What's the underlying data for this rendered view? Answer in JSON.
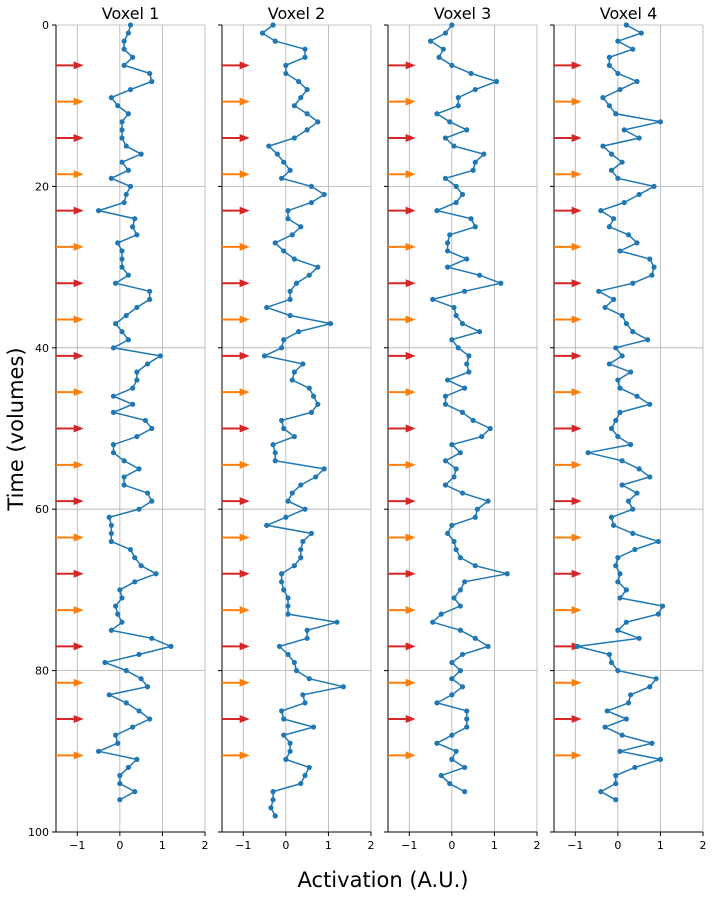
{
  "figure": {
    "xlabel": "Activation (A.U.)",
    "ylabel": "Time (volumes)"
  },
  "chart_data": {
    "type": "line",
    "orientation": "vertical-time",
    "grid": true,
    "x_range": [
      -1.5,
      2
    ],
    "y_range": [
      0,
      100
    ],
    "y_inverted": true,
    "x_ticks": [
      -1,
      0,
      1,
      2
    ],
    "y_ticks": [
      0,
      20,
      40,
      60,
      80,
      100
    ],
    "line_color": "#1f77b4",
    "stimulus_markers": [
      {
        "time": 5,
        "color": "#d62728"
      },
      {
        "time": 9.5,
        "color": "#ff7f0e"
      },
      {
        "time": 14,
        "color": "#d62728"
      },
      {
        "time": 18.5,
        "color": "#ff7f0e"
      },
      {
        "time": 23,
        "color": "#d62728"
      },
      {
        "time": 27.5,
        "color": "#ff7f0e"
      },
      {
        "time": 32,
        "color": "#d62728"
      },
      {
        "time": 36.5,
        "color": "#ff7f0e"
      },
      {
        "time": 41,
        "color": "#d62728"
      },
      {
        "time": 45.5,
        "color": "#ff7f0e"
      },
      {
        "time": 50,
        "color": "#d62728"
      },
      {
        "time": 54.5,
        "color": "#ff7f0e"
      },
      {
        "time": 59,
        "color": "#d62728"
      },
      {
        "time": 63.5,
        "color": "#ff7f0e"
      },
      {
        "time": 68,
        "color": "#d62728"
      },
      {
        "time": 72.5,
        "color": "#ff7f0e"
      },
      {
        "time": 77,
        "color": "#d62728"
      },
      {
        "time": 81.5,
        "color": "#ff7f0e"
      },
      {
        "time": 86,
        "color": "#d62728"
      },
      {
        "time": 90.5,
        "color": "#ff7f0e"
      }
    ],
    "panels": [
      {
        "title": "Voxel 1",
        "values": [
          0.25,
          0.2,
          0.1,
          0.1,
          0.3,
          0.1,
          0.7,
          0.75,
          0.25,
          -0.2,
          -0.05,
          0.2,
          0.05,
          0.05,
          0.05,
          0.15,
          0.5,
          0.05,
          0.2,
          -0.2,
          0.25,
          0.15,
          0.1,
          -0.5,
          0.35,
          0.3,
          0.4,
          -0.05,
          0.05,
          0.05,
          0.05,
          0.2,
          -0.1,
          0.7,
          0.7,
          0.4,
          0.15,
          -0.1,
          0.05,
          0.2,
          -0.15,
          0.95,
          0.65,
          0.4,
          0.4,
          0.3,
          -0.15,
          0.3,
          -0.15,
          0.6,
          0.75,
          0.4,
          -0.15,
          -0.15,
          0.1,
          0.45,
          0.1,
          0.1,
          0.65,
          0.75,
          0.45,
          -0.25,
          -0.2,
          -0.2,
          -0.2,
          0.25,
          0.35,
          0.5,
          0.85,
          0.35,
          0.0,
          0.05,
          -0.1,
          -0.05,
          0.05,
          -0.2,
          0.75,
          1.2,
          0.45,
          -0.35,
          0.15,
          0.5,
          0.65,
          -0.25,
          0.15,
          0.45,
          0.7,
          0.3,
          -0.1,
          -0.05,
          -0.5,
          0.4,
          0.2,
          0.0,
          0.0,
          0.35,
          0.0
        ]
      },
      {
        "title": "Voxel 2",
        "values": [
          -0.3,
          -0.55,
          -0.25,
          0.45,
          0.45,
          0.0,
          0.0,
          0.3,
          0.5,
          0.35,
          0.2,
          0.5,
          0.75,
          0.5,
          0.2,
          -0.4,
          -0.2,
          -0.05,
          0.1,
          -0.1,
          0.6,
          0.9,
          0.6,
          0.05,
          0.05,
          0.35,
          0.15,
          -0.25,
          -0.05,
          0.2,
          0.75,
          0.55,
          0.25,
          0.1,
          0.1,
          -0.45,
          0.1,
          1.05,
          0.3,
          -0.05,
          -0.1,
          -0.5,
          0.4,
          0.2,
          0.15,
          0.55,
          0.65,
          0.75,
          0.6,
          -0.1,
          -0.05,
          0.2,
          -0.3,
          -0.25,
          -0.25,
          0.9,
          0.7,
          0.35,
          0.15,
          0.05,
          0.45,
          0.0,
          -0.45,
          0.6,
          0.4,
          0.35,
          0.35,
          0.2,
          -0.1,
          -0.1,
          -0.05,
          0.05,
          0.05,
          0.05,
          1.2,
          0.5,
          0.5,
          -0.15,
          0.05,
          0.2,
          0.25,
          0.55,
          1.35,
          0.4,
          0.45,
          -0.1,
          -0.05,
          0.65,
          -0.05,
          0.1,
          0.1,
          0.0,
          0.55,
          0.45,
          0.35,
          -0.3,
          -0.3,
          -0.35,
          -0.25
        ]
      },
      {
        "title": "Voxel 3",
        "values": [
          0.0,
          -0.15,
          -0.5,
          -0.2,
          -0.3,
          0.0,
          0.45,
          1.05,
          0.55,
          0.15,
          0.15,
          -0.35,
          -0.05,
          0.35,
          -0.15,
          0.05,
          0.75,
          0.55,
          0.5,
          -0.15,
          0.1,
          0.25,
          0.1,
          -0.35,
          0.45,
          0.55,
          -0.05,
          -0.1,
          -0.1,
          0.35,
          -0.1,
          0.65,
          1.15,
          0.3,
          -0.45,
          0.05,
          0.1,
          0.25,
          0.65,
          0.0,
          0.15,
          0.4,
          0.35,
          0.4,
          -0.1,
          0.3,
          -0.15,
          -0.15,
          0.25,
          0.5,
          0.9,
          0.7,
          0.0,
          0.2,
          -0.15,
          0.1,
          0.05,
          -0.15,
          0.25,
          0.85,
          0.6,
          0.55,
          0.0,
          -0.1,
          0.05,
          0.1,
          0.2,
          0.55,
          1.3,
          0.3,
          0.2,
          0.05,
          0.2,
          -0.25,
          -0.45,
          0.2,
          0.55,
          0.85,
          0.25,
          0.0,
          0.2,
          0.0,
          0.25,
          0.0,
          -0.35,
          0.35,
          0.35,
          0.35,
          0.0,
          -0.35,
          0.1,
          0.0,
          0.3,
          -0.25,
          -0.05,
          0.3
        ]
      },
      {
        "title": "Voxel 4",
        "values": [
          0.2,
          0.55,
          0.0,
          0.35,
          -0.2,
          -0.2,
          0.0,
          0.45,
          0.05,
          -0.35,
          -0.2,
          -0.05,
          1.0,
          0.15,
          0.5,
          -0.35,
          -0.15,
          0.1,
          -0.15,
          0.0,
          0.85,
          0.5,
          0.15,
          -0.4,
          -0.1,
          -0.2,
          0.25,
          0.45,
          0.05,
          0.75,
          0.85,
          0.8,
          0.35,
          -0.45,
          -0.1,
          -0.3,
          0.1,
          0.2,
          0.35,
          0.7,
          -0.05,
          0.1,
          -0.2,
          0.3,
          0.0,
          0.05,
          0.45,
          0.75,
          0.05,
          -0.05,
          -0.15,
          0.0,
          0.3,
          -0.7,
          0.1,
          0.5,
          0.75,
          0.1,
          0.45,
          0.25,
          0.35,
          -0.15,
          -0.1,
          0.35,
          0.95,
          0.4,
          0.0,
          -0.05,
          0.05,
          0.0,
          0.2,
          0.05,
          1.05,
          0.95,
          0.2,
          0.0,
          0.5,
          -0.95,
          -0.2,
          -0.15,
          0.0,
          0.9,
          0.75,
          0.3,
          0.25,
          -0.25,
          0.2,
          -0.3,
          0.1,
          0.8,
          0.05,
          1.0,
          0.4,
          -0.05,
          -0.05,
          -0.4,
          -0.05
        ]
      }
    ]
  }
}
